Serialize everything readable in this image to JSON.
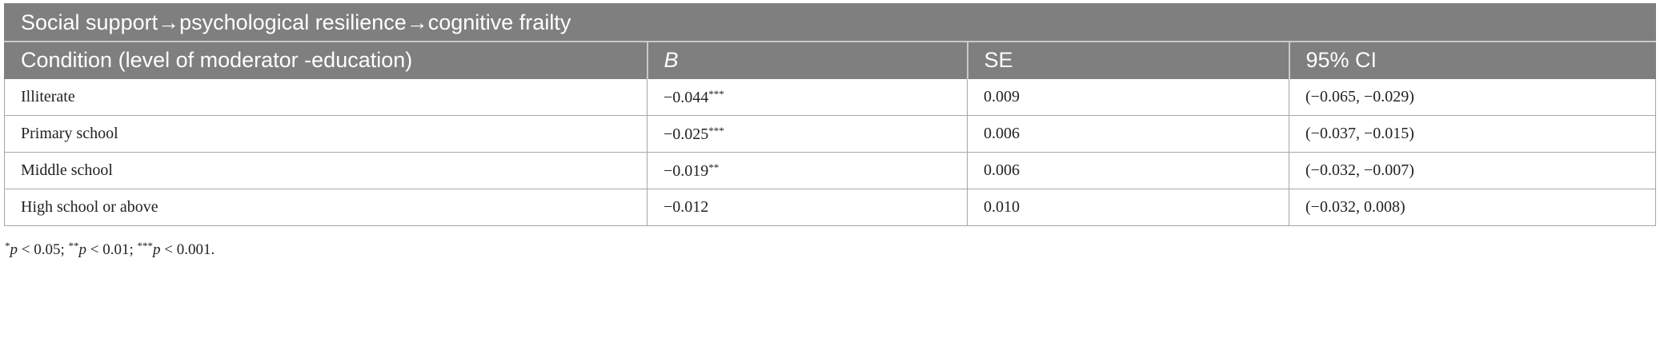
{
  "title": "Social support→psychological resilience→cognitive frailty",
  "header": [
    "Condition (level of moderator -education)",
    "B",
    "SE",
    "95% CI"
  ],
  "rows": [
    {
      "condition": "Illiterate",
      "b": "−0.044",
      "b_stars": "***",
      "se": "0.009",
      "ci": "(−0.065, −0.029)"
    },
    {
      "condition": "Primary school",
      "b": "−0.025",
      "b_stars": "***",
      "se": "0.006",
      "ci": "(−0.037, −0.015)"
    },
    {
      "condition": "Middle school",
      "b": "−0.019",
      "b_stars": "**",
      "se": "0.006",
      "ci": "(−0.032, −0.007)"
    },
    {
      "condition": "High school or above",
      "b": "−0.012",
      "se": "0.010",
      "ci": "(−0.032, 0.008)"
    }
  ],
  "footnote": [
    "*",
    "p",
    " < 0.05; ",
    "**",
    "p",
    " < 0.01; ",
    "***",
    "p",
    " < 0.001."
  ]
}
